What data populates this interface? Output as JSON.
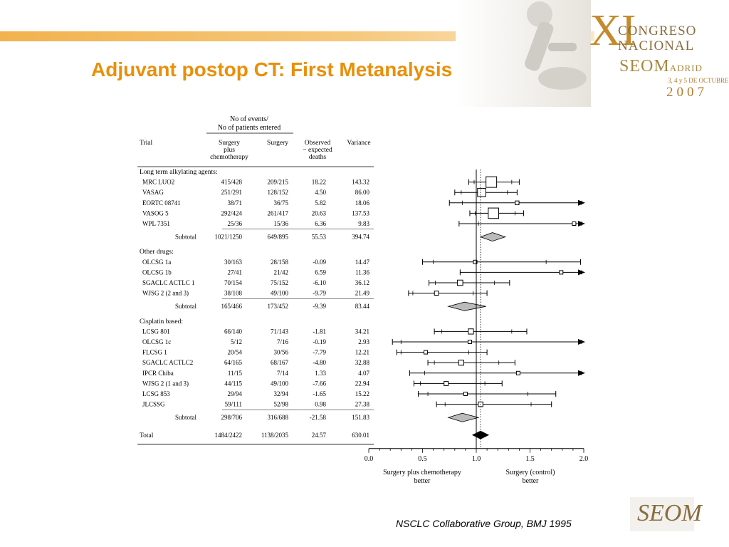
{
  "slide": {
    "title": "Adjuvant postop CT: First Metanalysis",
    "citation": "NSCLC Collaborative Group, BMJ 1995"
  },
  "logo": {
    "line1": "XI",
    "line2": "CONGRESO",
    "line3": "NACIONAL",
    "line4": "SEOM",
    "line4_suffix": "ADRID",
    "line5": "3, 4 y 5 DE OCTUBRE",
    "line6": "2007",
    "footer_logo": "SEOM",
    "colors": {
      "accent": "#e8900a",
      "rule": "#f2b24f",
      "gold": "#c48a2c"
    }
  },
  "chart_data": {
    "type": "forest",
    "header_group": "No of events/ No of patients entered",
    "columns": [
      "Trial",
      "Surgery plus chemotherapy",
      "Surgery",
      "Observed − expected deaths",
      "Variance"
    ],
    "groups": [
      {
        "name": "Long term alkylating agents:",
        "trials": [
          {
            "trial": "MRC LUO2",
            "chemo": "415/428",
            "surgery": "209/215",
            "oe": "18.22",
            "variance": "143.32",
            "hr": 1.14,
            "ci99": [
              0.93,
              1.4
            ],
            "ci95": [
              0.98,
              1.33
            ]
          },
          {
            "trial": "VASAG",
            "chemo": "251/291",
            "surgery": "128/152",
            "oe": "4.50",
            "variance": "86.00",
            "hr": 1.05,
            "ci99": [
              0.8,
              1.38
            ],
            "ci95": [
              0.86,
              1.29
            ]
          },
          {
            "trial": "EORTC 08741",
            "chemo": "38/71",
            "surgery": "36/75",
            "oe": "5.82",
            "variance": "18.06",
            "hr": 1.38,
            "ci99": [
              0.75,
              2.0
            ],
            "ci95": [
              0.87,
              2.0
            ],
            "arrow": true
          },
          {
            "trial": "VASOG 5",
            "chemo": "292/424",
            "surgery": "261/417",
            "oe": "20.63",
            "variance": "137.53",
            "hr": 1.16,
            "ci99": [
              0.94,
              1.44
            ],
            "ci95": [
              0.99,
              1.36
            ]
          },
          {
            "trial": "WPL 7351",
            "chemo": "25/36",
            "surgery": "15/36",
            "oe": "6.36",
            "variance": "9.83",
            "hr": 1.91,
            "ci99": [
              0.84,
              2.0
            ],
            "ci95": [
              1.02,
              2.0
            ],
            "arrow": true
          }
        ],
        "subtotal": {
          "label": "Subtotal",
          "chemo": "1021/1250",
          "surgery": "649/895",
          "oe": "55.53",
          "variance": "394.74",
          "hr": 1.15,
          "ci": [
            1.04,
            1.27
          ]
        }
      },
      {
        "name": "Other drugs:",
        "trials": [
          {
            "trial": "OLCSG 1a",
            "chemo": "30/163",
            "surgery": "28/158",
            "oe": "-0.09",
            "variance": "14.47",
            "hr": 0.99,
            "ci99": [
              0.5,
              1.97
            ],
            "ci95": [
              0.6,
              1.65
            ]
          },
          {
            "trial": "OLCSG 1b",
            "chemo": "27/41",
            "surgery": "21/42",
            "oe": "6.59",
            "variance": "11.36",
            "hr": 1.79,
            "ci99": [
              0.85,
              2.0
            ],
            "ci95": [
              1.0,
              2.0
            ],
            "arrow": true
          },
          {
            "trial": "SGACLC ACTLC 1",
            "chemo": "70/154",
            "surgery": "75/152",
            "oe": "-6.10",
            "variance": "36.12",
            "hr": 0.85,
            "ci99": [
              0.56,
              1.31
            ],
            "ci95": [
              0.62,
              1.17
            ]
          },
          {
            "trial": "WJSG 2 (2 and 3)",
            "chemo": "38/108",
            "surgery": "49/100",
            "oe": "-9.79",
            "variance": "21.49",
            "hr": 0.63,
            "ci99": [
              0.37,
              1.1
            ],
            "ci95": [
              0.41,
              0.97
            ]
          }
        ],
        "subtotal": {
          "label": "Subtotal",
          "chemo": "165/466",
          "surgery": "173/452",
          "oe": "-9.39",
          "variance": "83.44",
          "hr": 0.89,
          "ci": [
            0.74,
            1.09
          ]
        }
      },
      {
        "name": "Cisplatin based:",
        "trials": [
          {
            "trial": "LCSG 801",
            "chemo": "66/140",
            "surgery": "71/143",
            "oe": "-1.81",
            "variance": "34.21",
            "hr": 0.95,
            "ci99": [
              0.61,
              1.47
            ],
            "ci95": [
              0.68,
              1.33
            ]
          },
          {
            "trial": "OLCSG 1c",
            "chemo": "5/12",
            "surgery": "7/16",
            "oe": "-0.19",
            "variance": "2.93",
            "hr": 0.94,
            "ci99": [
              0.22,
              2.0
            ],
            "ci95": [
              0.3,
              2.0
            ],
            "arrow": true
          },
          {
            "trial": "FLCSG 1",
            "chemo": "20/54",
            "surgery": "30/56",
            "oe": "-7.79",
            "variance": "12.21",
            "hr": 0.53,
            "ci99": [
              0.26,
              1.1
            ],
            "ci95": [
              0.3,
              0.93
            ]
          },
          {
            "trial": "SGACLC ACTLC2",
            "chemo": "64/165",
            "surgery": "68/167",
            "oe": "-4.80",
            "variance": "32.88",
            "hr": 0.86,
            "ci99": [
              0.55,
              1.36
            ],
            "ci95": [
              0.61,
              1.21
            ]
          },
          {
            "trial": "IPCR Chiba",
            "chemo": "11/15",
            "surgery": "7/14",
            "oe": "1.33",
            "variance": "4.07",
            "hr": 1.39,
            "ci99": [
              0.38,
              2.0
            ],
            "ci95": [
              0.52,
              2.0
            ],
            "arrow": true
          },
          {
            "trial": "WJSG 2 (1 and 3)",
            "chemo": "44/115",
            "surgery": "49/100",
            "oe": "-7.66",
            "variance": "22.94",
            "hr": 0.72,
            "ci99": [
              0.42,
              1.24
            ],
            "ci95": [
              0.48,
              1.08
            ]
          },
          {
            "trial": "LCSG 853",
            "chemo": "29/94",
            "surgery": "32/94",
            "oe": "-1.65",
            "variance": "15.22",
            "hr": 0.9,
            "ci99": [
              0.46,
              1.74
            ],
            "ci95": [
              0.55,
              1.48
            ]
          },
          {
            "trial": "JLCSSG",
            "chemo": "59/111",
            "surgery": "52/98",
            "oe": "0.98",
            "variance": "27.38",
            "hr": 1.04,
            "ci99": [
              0.63,
              1.7
            ],
            "ci95": [
              0.71,
              1.51
            ]
          }
        ],
        "subtotal": {
          "label": "Subtotal",
          "chemo": "298/706",
          "surgery": "316/688",
          "oe": "-21.58",
          "variance": "151.83",
          "hr": 0.87,
          "ci": [
            0.74,
            1.02
          ]
        }
      }
    ],
    "total": {
      "label": "Total",
      "chemo": "1484/2422",
      "surgery": "1138/2035",
      "oe": "24.57",
      "variance": "630.01",
      "hr": 1.04,
      "ci": [
        0.96,
        1.12
      ]
    },
    "xaxis": {
      "ticks": [
        "0.0",
        "0.5",
        "1.0",
        "1.5",
        "2.0"
      ],
      "min": 0.0,
      "max": 2.0
    },
    "favors_left": [
      "Surgery plus chemotherapy",
      "better"
    ],
    "favors_right": [
      "Surgery (control)",
      "better"
    ],
    "reference_line": 1.0,
    "overall_line": 1.04
  }
}
